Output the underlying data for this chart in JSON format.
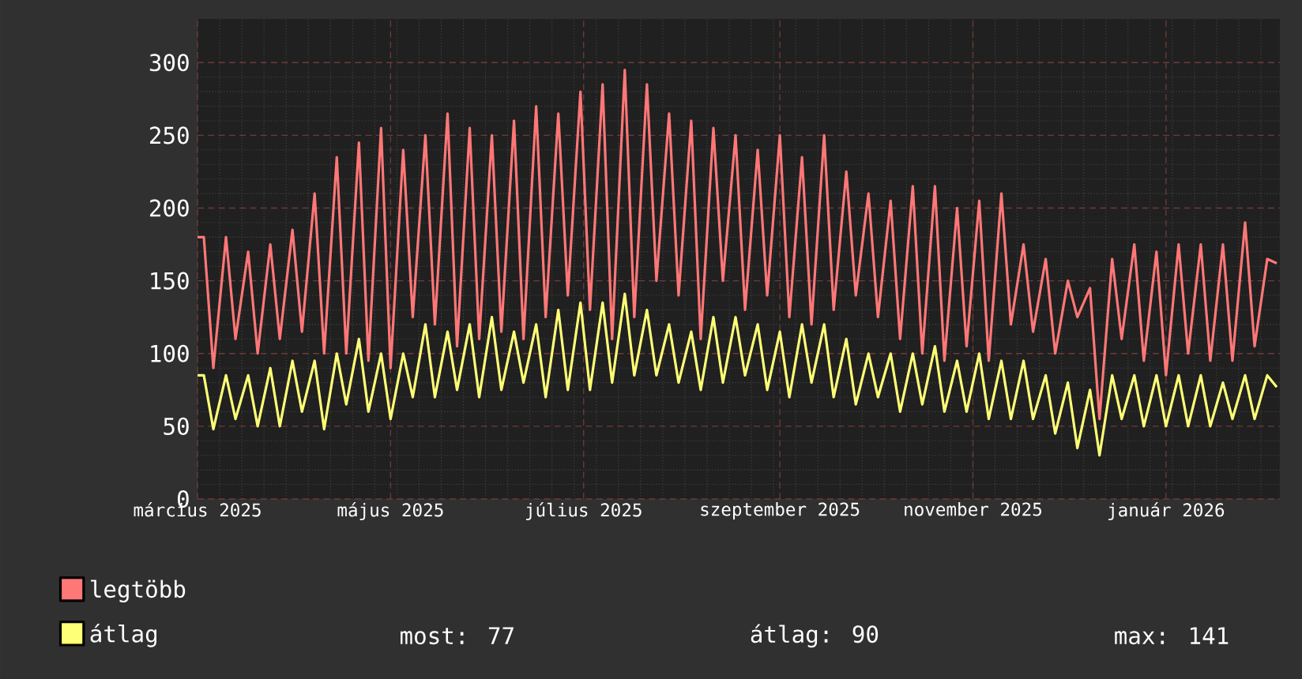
{
  "chart_data": {
    "type": "line",
    "x": [
      "2025-03-01",
      "2025-03-03",
      "2025-03-06",
      "2025-03-10",
      "2025-03-13",
      "2025-03-17",
      "2025-03-20",
      "2025-03-24",
      "2025-03-27",
      "2025-03-31",
      "2025-04-03",
      "2025-04-07",
      "2025-04-10",
      "2025-04-14",
      "2025-04-17",
      "2025-04-21",
      "2025-04-24",
      "2025-04-28",
      "2025-05-01",
      "2025-05-05",
      "2025-05-08",
      "2025-05-12",
      "2025-05-15",
      "2025-05-19",
      "2025-05-22",
      "2025-05-26",
      "2025-05-29",
      "2025-06-02",
      "2025-06-05",
      "2025-06-09",
      "2025-06-12",
      "2025-06-16",
      "2025-06-19",
      "2025-06-23",
      "2025-06-26",
      "2025-06-30",
      "2025-07-03",
      "2025-07-07",
      "2025-07-10",
      "2025-07-14",
      "2025-07-17",
      "2025-07-21",
      "2025-07-24",
      "2025-07-28",
      "2025-07-31",
      "2025-08-04",
      "2025-08-07",
      "2025-08-11",
      "2025-08-14",
      "2025-08-18",
      "2025-08-21",
      "2025-08-25",
      "2025-08-28",
      "2025-09-01",
      "2025-09-04",
      "2025-09-08",
      "2025-09-11",
      "2025-09-15",
      "2025-09-18",
      "2025-09-22",
      "2025-09-25",
      "2025-09-29",
      "2025-10-02",
      "2025-10-06",
      "2025-10-09",
      "2025-10-13",
      "2025-10-16",
      "2025-10-20",
      "2025-10-23",
      "2025-10-27",
      "2025-10-30",
      "2025-11-03",
      "2025-11-06",
      "2025-11-10",
      "2025-11-13",
      "2025-11-17",
      "2025-11-20",
      "2025-11-24",
      "2025-11-27",
      "2025-12-01",
      "2025-12-04",
      "2025-12-08",
      "2025-12-11",
      "2025-12-15",
      "2025-12-18",
      "2025-12-22",
      "2025-12-25",
      "2025-12-29",
      "2026-01-01",
      "2026-01-05",
      "2026-01-08",
      "2026-01-12",
      "2026-01-15",
      "2026-01-19",
      "2026-01-22",
      "2026-01-26",
      "2026-01-29",
      "2026-02-02",
      "2026-02-05"
    ],
    "series": [
      {
        "name": "legtöbb",
        "color": "#ff7777",
        "values": [
          180,
          180,
          90,
          180,
          110,
          170,
          100,
          175,
          110,
          185,
          115,
          210,
          100,
          235,
          100,
          245,
          95,
          255,
          90,
          240,
          125,
          250,
          120,
          265,
          105,
          255,
          110,
          250,
          115,
          260,
          110,
          270,
          125,
          265,
          140,
          280,
          130,
          285,
          110,
          295,
          125,
          285,
          150,
          265,
          140,
          260,
          110,
          255,
          150,
          250,
          130,
          240,
          140,
          250,
          125,
          235,
          120,
          250,
          130,
          225,
          140,
          210,
          125,
          205,
          110,
          215,
          100,
          215,
          95,
          200,
          105,
          205,
          95,
          210,
          120,
          175,
          115,
          165,
          100,
          150,
          125,
          145,
          55,
          165,
          110,
          175,
          95,
          170,
          85,
          175,
          100,
          175,
          95,
          175,
          95,
          190,
          105,
          165,
          162
        ]
      },
      {
        "name": "átlag",
        "color": "#ffff77",
        "values": [
          85,
          85,
          48,
          85,
          55,
          85,
          50,
          90,
          50,
          95,
          60,
          95,
          48,
          100,
          65,
          110,
          60,
          100,
          55,
          100,
          70,
          120,
          70,
          115,
          75,
          120,
          70,
          125,
          75,
          115,
          80,
          120,
          70,
          130,
          75,
          135,
          75,
          135,
          80,
          141,
          85,
          130,
          85,
          120,
          80,
          115,
          75,
          125,
          80,
          125,
          85,
          120,
          75,
          115,
          70,
          120,
          80,
          120,
          70,
          110,
          65,
          100,
          70,
          100,
          60,
          100,
          65,
          105,
          60,
          95,
          60,
          100,
          55,
          95,
          55,
          95,
          55,
          85,
          45,
          80,
          35,
          75,
          30,
          85,
          55,
          85,
          50,
          85,
          50,
          85,
          50,
          85,
          50,
          80,
          55,
          85,
          55,
          85,
          77
        ]
      }
    ],
    "xlim": [
      "2025-03-01",
      "2026-02-06"
    ],
    "xticks": [
      {
        "value": "2025-03-01",
        "label": "március 2025"
      },
      {
        "value": "2025-05-01",
        "label": "május 2025"
      },
      {
        "value": "2025-07-01",
        "label": "július 2025"
      },
      {
        "value": "2025-09-01",
        "label": "szeptember 2025"
      },
      {
        "value": "2025-11-01",
        "label": "november 2025"
      },
      {
        "value": "2026-01-01",
        "label": "január 2026"
      }
    ],
    "ylim": [
      0,
      330
    ],
    "yticks": [
      0,
      50,
      100,
      150,
      200,
      250,
      300
    ],
    "grid": true,
    "legend": "bottom",
    "annotations": [
      "most: 77",
      "átlag: 90",
      "max: 141"
    ]
  }
}
